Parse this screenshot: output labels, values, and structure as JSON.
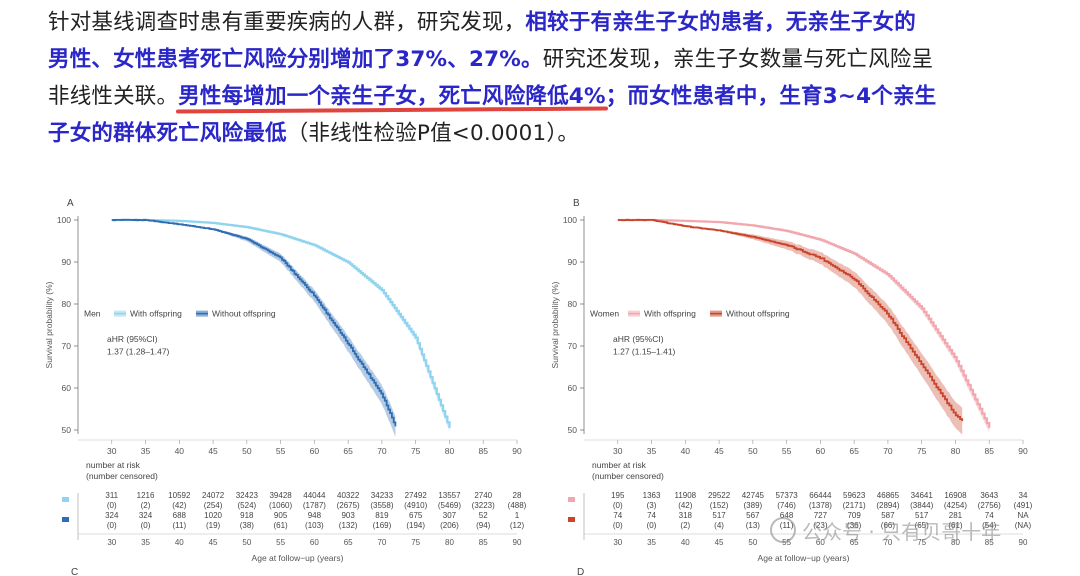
{
  "article": {
    "lines": [
      [
        {
          "t": "针对基线调查时患有重要疾病的人群，研究发现，",
          "s": "n"
        },
        {
          "t": "相较于有亲生子女的患者，无亲生子女的",
          "s": "h"
        }
      ],
      [
        {
          "t": "男性、女性患者死亡风险分别增加了37%、27%。",
          "s": "h"
        },
        {
          "t": "研究还发现，亲生子女数量与死亡风险呈",
          "s": "n"
        }
      ],
      [
        {
          "t": "非线性关联。",
          "s": "n"
        },
        {
          "t": "男性每增加一个亲生子女，死亡风险降低4%",
          "s": "hu"
        },
        {
          "t": "；而女性患者中，生育3~4个亲生",
          "s": "h"
        }
      ],
      [
        {
          "t": "子女的群体死亡风险最低",
          "s": "h"
        },
        {
          "t": "（非线性检验P值<0.0001）。",
          "s": "n"
        }
      ]
    ]
  },
  "watermark": "公众号 · 只有贝哥十年",
  "chart_data": [
    {
      "type": "line",
      "panel_label": "A",
      "bottom_label": "C",
      "title": "",
      "ylabel": "Survival probability (%)",
      "xlabel": "Age at follow−up (years)",
      "ylim": [
        50,
        100
      ],
      "xlim": [
        25,
        90
      ],
      "yticks": [
        50,
        60,
        70,
        80,
        90,
        100
      ],
      "xticks": [
        30,
        35,
        40,
        45,
        50,
        55,
        60,
        65,
        70,
        75,
        80,
        85,
        90
      ],
      "legend_title": "Men",
      "legend_position": "middle-left",
      "annotation": [
        "aHR (95%CI)",
        "1.37 (1.28–1.47)"
      ],
      "series": [
        {
          "name": "With offspring",
          "color": "#8fd3ef",
          "x": [
            30,
            35,
            40,
            45,
            50,
            55,
            60,
            65,
            70,
            75,
            80
          ],
          "y": [
            100,
            100,
            99.8,
            99.3,
            98.3,
            96.6,
            94.0,
            89.9,
            83.3,
            72.0,
            50.5
          ]
        },
        {
          "name": "Without offspring",
          "color": "#2e6db4",
          "x": [
            30,
            35,
            40,
            45,
            50,
            55,
            60,
            65,
            70,
            72
          ],
          "y": [
            100,
            100,
            99.0,
            97.8,
            95.5,
            91.0,
            82.0,
            70.5,
            58.5,
            51.0
          ]
        }
      ],
      "risk_table": {
        "header": [
          "number at risk",
          "(number censored)"
        ],
        "ages": [
          "30",
          "35",
          "40",
          "45",
          "50",
          "55",
          "60",
          "65",
          "70",
          "75",
          "80",
          "85",
          "90"
        ],
        "rows": [
          {
            "group": "With offspring",
            "color": "#8fd3ef",
            "at_risk": [
              "311",
              "1216",
              "10592",
              "24072",
              "32423",
              "39428",
              "44044",
              "40322",
              "34233",
              "27492",
              "13557",
              "2740",
              "28"
            ],
            "censored": [
              "(0)",
              "(2)",
              "(42)",
              "(254)",
              "(524)",
              "(1060)",
              "(1787)",
              "(2675)",
              "(3558)",
              "(4910)",
              "(5469)",
              "(3223)",
              "(488)"
            ]
          },
          {
            "group": "Without offspring",
            "color": "#2e6db4",
            "at_risk": [
              "324",
              "324",
              "688",
              "1020",
              "918",
              "905",
              "948",
              "903",
              "819",
              "675",
              "307",
              "52",
              "1"
            ],
            "censored": [
              "(0)",
              "(0)",
              "(11)",
              "(19)",
              "(38)",
              "(61)",
              "(103)",
              "(132)",
              "(169)",
              "(194)",
              "(206)",
              "(94)",
              "(12)"
            ]
          }
        ]
      }
    },
    {
      "type": "line",
      "panel_label": "B",
      "bottom_label": "D",
      "title": "",
      "ylabel": "Survival probability (%)",
      "xlabel": "Age at follow−up (years)",
      "ylim": [
        50,
        100
      ],
      "xlim": [
        25,
        90
      ],
      "yticks": [
        50,
        60,
        70,
        80,
        90,
        100
      ],
      "xticks": [
        30,
        35,
        40,
        45,
        50,
        55,
        60,
        65,
        70,
        75,
        80,
        85,
        90
      ],
      "legend_title": "Women",
      "legend_position": "middle-left",
      "annotation": [
        "aHR (95%CI)",
        "1.27 (1.15–1.41)"
      ],
      "series": [
        {
          "name": "With offspring",
          "color": "#f1a7ae",
          "x": [
            30,
            35,
            40,
            45,
            50,
            55,
            60,
            65,
            70,
            75,
            80,
            85
          ],
          "y": [
            100,
            100,
            99.8,
            99.5,
            98.7,
            97.4,
            95.3,
            92.0,
            87.0,
            79.0,
            67.0,
            50.5
          ]
        },
        {
          "name": "Without offspring",
          "color": "#c8452c",
          "x": [
            30,
            35,
            40,
            45,
            50,
            55,
            60,
            65,
            70,
            75,
            80,
            81
          ],
          "y": [
            100,
            100,
            98.5,
            97.5,
            96.0,
            94.0,
            91.0,
            86.0,
            77.5,
            65.5,
            53.5,
            52.0
          ]
        }
      ],
      "risk_table": {
        "header": [
          "number at risk",
          "(number censored)"
        ],
        "ages": [
          "30",
          "35",
          "40",
          "45",
          "50",
          "55",
          "60",
          "65",
          "70",
          "75",
          "80",
          "85",
          "90"
        ],
        "rows": [
          {
            "group": "With offspring",
            "color": "#f1a7ae",
            "at_risk": [
              "195",
              "1363",
              "11908",
              "29522",
              "42745",
              "57373",
              "66444",
              "59623",
              "46865",
              "34641",
              "16908",
              "3643",
              "34"
            ],
            "censored": [
              "(0)",
              "(3)",
              "(42)",
              "(152)",
              "(389)",
              "(746)",
              "(1378)",
              "(2171)",
              "(2894)",
              "(3844)",
              "(4254)",
              "(2756)",
              "(491)"
            ]
          },
          {
            "group": "Without offspring",
            "color": "#c8452c",
            "at_risk": [
              "74",
              "74",
              "318",
              "517",
              "567",
              "648",
              "727",
              "709",
              "587",
              "517",
              "281",
              "74",
              "NA"
            ],
            "censored": [
              "(0)",
              "(0)",
              "(2)",
              "(4)",
              "(13)",
              "(11)",
              "(23)",
              "(36)",
              "(66)",
              "(65)",
              "(61)",
              "(54)",
              "(NA)"
            ]
          }
        ]
      }
    }
  ]
}
